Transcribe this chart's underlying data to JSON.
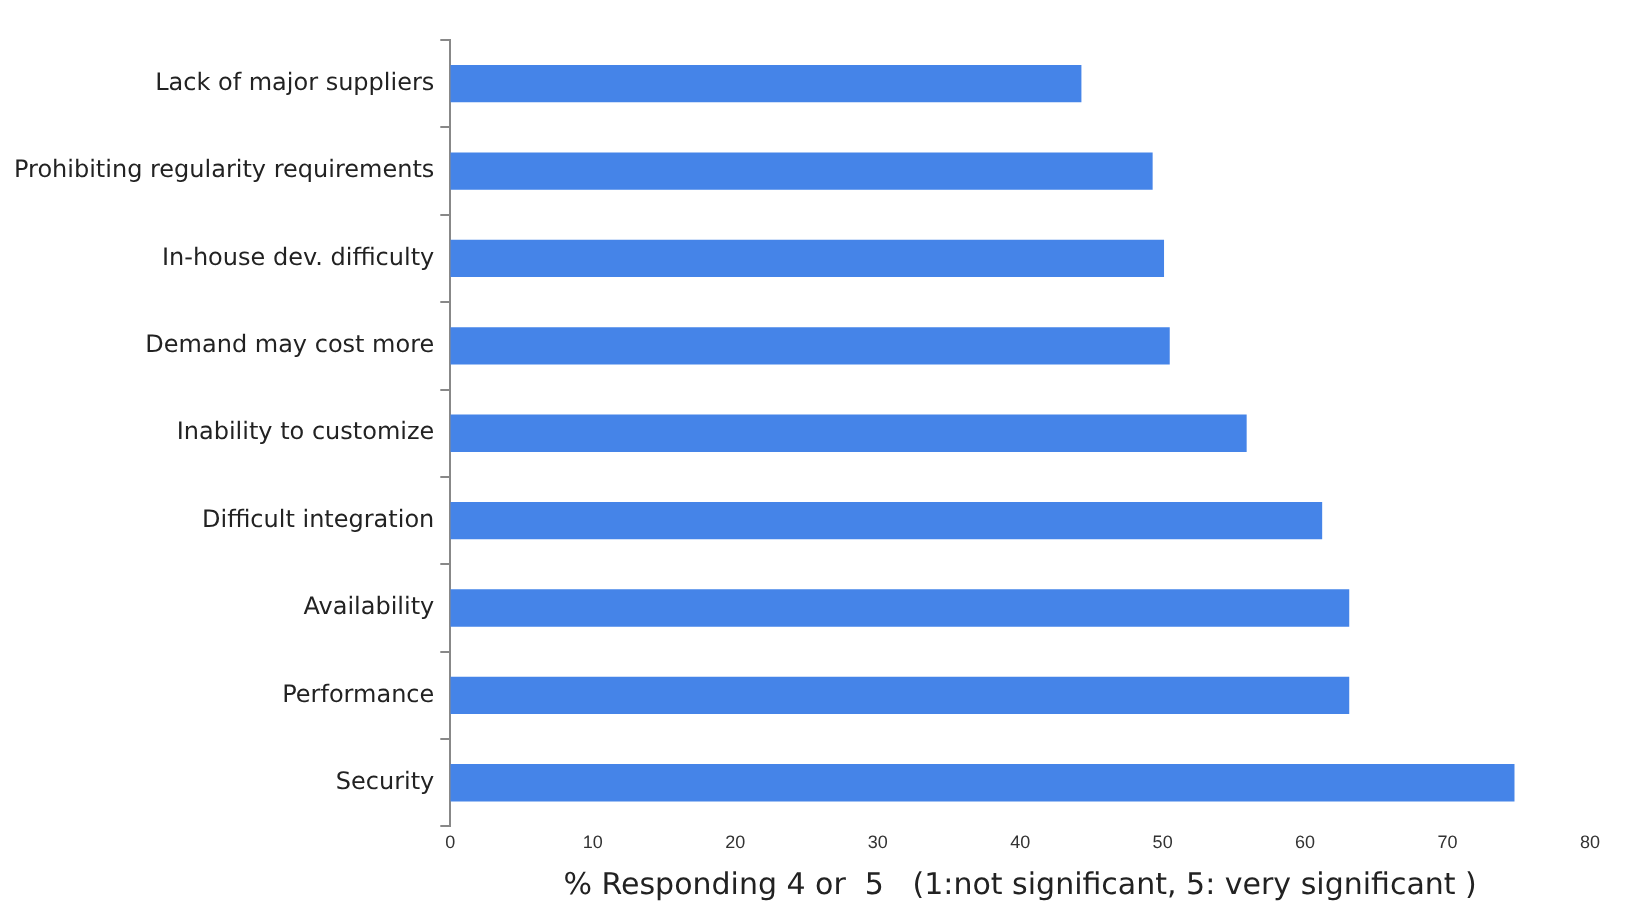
{
  "chart_data": {
    "type": "bar",
    "orientation": "horizontal",
    "xlabel": "% Responding 4 or  5   (1:not significant, 5: very significant )",
    "categories": [
      "Lack of major suppliers",
      "Prohibiting regularity requirements",
      "In-house dev. difficulty",
      "Demand may cost more",
      "Inability to customize",
      "Difficult integration",
      "Availability",
      "Performance",
      "Security"
    ],
    "values": [
      44.3,
      49.3,
      50.1,
      50.5,
      55.9,
      61.2,
      63.1,
      63.1,
      74.7
    ],
    "color": "#4584e8",
    "xlim": [
      0,
      80
    ],
    "xticks": [
      0,
      10,
      20,
      30,
      40,
      50,
      60,
      70,
      80
    ],
    "grid": false,
    "legend": false
  }
}
